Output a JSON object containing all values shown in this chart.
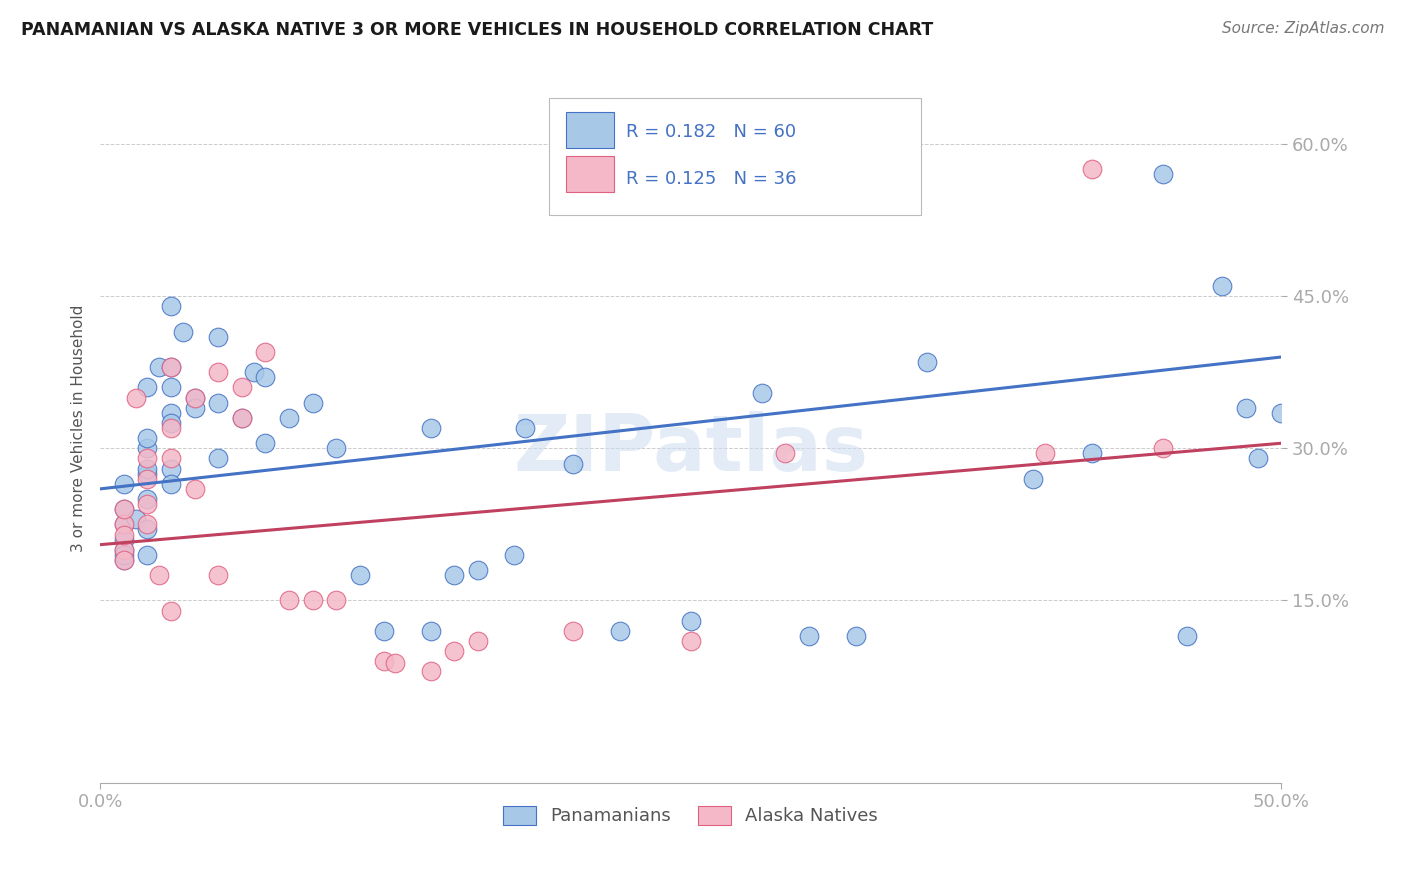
{
  "title": "PANAMANIAN VS ALASKA NATIVE 3 OR MORE VEHICLES IN HOUSEHOLD CORRELATION CHART",
  "source": "Source: ZipAtlas.com",
  "ylabel": "3 or more Vehicles in Household",
  "xlim": [
    0.0,
    0.5
  ],
  "ylim": [
    -0.03,
    0.67
  ],
  "ytick_values": [
    0.15,
    0.3,
    0.45,
    0.6
  ],
  "ytick_labels": [
    "15.0%",
    "30.0%",
    "45.0%",
    "60.0%"
  ],
  "xtick_values": [
    0.0,
    0.5
  ],
  "xtick_labels": [
    "0.0%",
    "50.0%"
  ],
  "blue_color": "#A8C8E8",
  "blue_edge_color": "#4472C4",
  "pink_color": "#F4B8C8",
  "pink_edge_color": "#E06080",
  "blue_line_color": "#4472C4",
  "pink_line_color": "#C04060",
  "label_color": "#4472C4",
  "watermark": "ZIPatlas",
  "blue_scatter": [
    [
      0.01,
      0.21
    ],
    [
      0.01,
      0.24
    ],
    [
      0.01,
      0.225
    ],
    [
      0.01,
      0.265
    ],
    [
      0.01,
      0.2
    ],
    [
      0.01,
      0.19
    ],
    [
      0.01,
      0.195
    ],
    [
      0.015,
      0.23
    ],
    [
      0.02,
      0.25
    ],
    [
      0.02,
      0.275
    ],
    [
      0.02,
      0.3
    ],
    [
      0.02,
      0.31
    ],
    [
      0.02,
      0.28
    ],
    [
      0.02,
      0.36
    ],
    [
      0.02,
      0.22
    ],
    [
      0.02,
      0.195
    ],
    [
      0.025,
      0.38
    ],
    [
      0.03,
      0.44
    ],
    [
      0.03,
      0.38
    ],
    [
      0.03,
      0.36
    ],
    [
      0.03,
      0.335
    ],
    [
      0.03,
      0.325
    ],
    [
      0.03,
      0.28
    ],
    [
      0.03,
      0.265
    ],
    [
      0.035,
      0.415
    ],
    [
      0.04,
      0.35
    ],
    [
      0.04,
      0.34
    ],
    [
      0.05,
      0.41
    ],
    [
      0.05,
      0.345
    ],
    [
      0.05,
      0.29
    ],
    [
      0.06,
      0.33
    ],
    [
      0.065,
      0.375
    ],
    [
      0.07,
      0.37
    ],
    [
      0.07,
      0.305
    ],
    [
      0.08,
      0.33
    ],
    [
      0.09,
      0.345
    ],
    [
      0.1,
      0.3
    ],
    [
      0.11,
      0.175
    ],
    [
      0.12,
      0.12
    ],
    [
      0.14,
      0.32
    ],
    [
      0.14,
      0.12
    ],
    [
      0.15,
      0.175
    ],
    [
      0.16,
      0.18
    ],
    [
      0.175,
      0.195
    ],
    [
      0.18,
      0.32
    ],
    [
      0.2,
      0.285
    ],
    [
      0.22,
      0.12
    ],
    [
      0.25,
      0.13
    ],
    [
      0.28,
      0.355
    ],
    [
      0.3,
      0.115
    ],
    [
      0.32,
      0.115
    ],
    [
      0.35,
      0.385
    ],
    [
      0.395,
      0.27
    ],
    [
      0.42,
      0.295
    ],
    [
      0.45,
      0.57
    ],
    [
      0.46,
      0.115
    ],
    [
      0.475,
      0.46
    ],
    [
      0.485,
      0.34
    ],
    [
      0.49,
      0.29
    ],
    [
      0.5,
      0.335
    ]
  ],
  "pink_scatter": [
    [
      0.01,
      0.225
    ],
    [
      0.01,
      0.24
    ],
    [
      0.01,
      0.2
    ],
    [
      0.01,
      0.215
    ],
    [
      0.01,
      0.19
    ],
    [
      0.015,
      0.35
    ],
    [
      0.02,
      0.29
    ],
    [
      0.02,
      0.27
    ],
    [
      0.02,
      0.245
    ],
    [
      0.02,
      0.225
    ],
    [
      0.025,
      0.175
    ],
    [
      0.03,
      0.38
    ],
    [
      0.03,
      0.32
    ],
    [
      0.03,
      0.29
    ],
    [
      0.03,
      0.14
    ],
    [
      0.04,
      0.35
    ],
    [
      0.04,
      0.26
    ],
    [
      0.05,
      0.375
    ],
    [
      0.05,
      0.175
    ],
    [
      0.06,
      0.36
    ],
    [
      0.06,
      0.33
    ],
    [
      0.07,
      0.395
    ],
    [
      0.08,
      0.15
    ],
    [
      0.09,
      0.15
    ],
    [
      0.1,
      0.15
    ],
    [
      0.12,
      0.09
    ],
    [
      0.125,
      0.088
    ],
    [
      0.14,
      0.08
    ],
    [
      0.15,
      0.1
    ],
    [
      0.16,
      0.11
    ],
    [
      0.2,
      0.12
    ],
    [
      0.25,
      0.11
    ],
    [
      0.29,
      0.295
    ],
    [
      0.4,
      0.295
    ],
    [
      0.42,
      0.575
    ],
    [
      0.45,
      0.3
    ]
  ],
  "blue_trendline_x": [
    0.0,
    0.5
  ],
  "blue_trendline_y": [
    0.26,
    0.39
  ],
  "pink_trendline_x": [
    0.0,
    0.5
  ],
  "pink_trendline_y": [
    0.205,
    0.305
  ],
  "R_blue": "0.182",
  "N_blue": "60",
  "R_pink": "0.125",
  "N_pink": "36"
}
